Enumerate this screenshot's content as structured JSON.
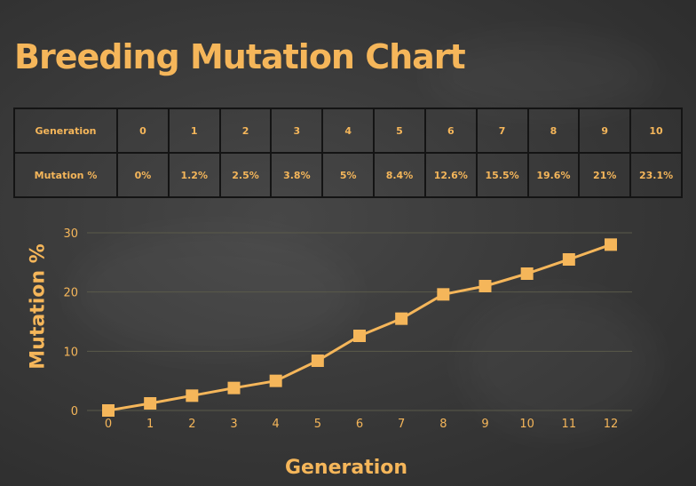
{
  "title": "Breeding Mutation Chart",
  "table": {
    "rows": [
      {
        "header": "Generation",
        "cells": [
          "0",
          "1",
          "2",
          "3",
          "4",
          "5",
          "6",
          "7",
          "8",
          "9",
          "10"
        ]
      },
      {
        "header": "Mutation %",
        "cells": [
          "0%",
          "1.2%",
          "2.5%",
          "3.8%",
          "5%",
          "8.4%",
          "12.6%",
          "15.5%",
          "19.6%",
          "21%",
          "23.1%"
        ]
      }
    ]
  },
  "colors": {
    "accent": "#f5b65a",
    "background": "#3a3a3a",
    "grid": "#5a5a4a"
  },
  "chart_data": {
    "type": "line",
    "xlabel": "Generation",
    "ylabel": "Mutation %",
    "x": [
      0,
      1,
      2,
      3,
      4,
      5,
      6,
      7,
      8,
      9,
      10,
      11,
      12
    ],
    "series": [
      {
        "values": [
          0,
          1.2,
          2.5,
          3.8,
          5,
          8.4,
          12.6,
          15.5,
          19.6,
          21,
          23.1,
          25.5,
          28
        ]
      }
    ],
    "xlim": [
      0,
      12
    ],
    "ylim": [
      0,
      30
    ],
    "yticks": [
      0,
      10,
      20,
      30
    ],
    "grid": true,
    "marker": "square"
  }
}
